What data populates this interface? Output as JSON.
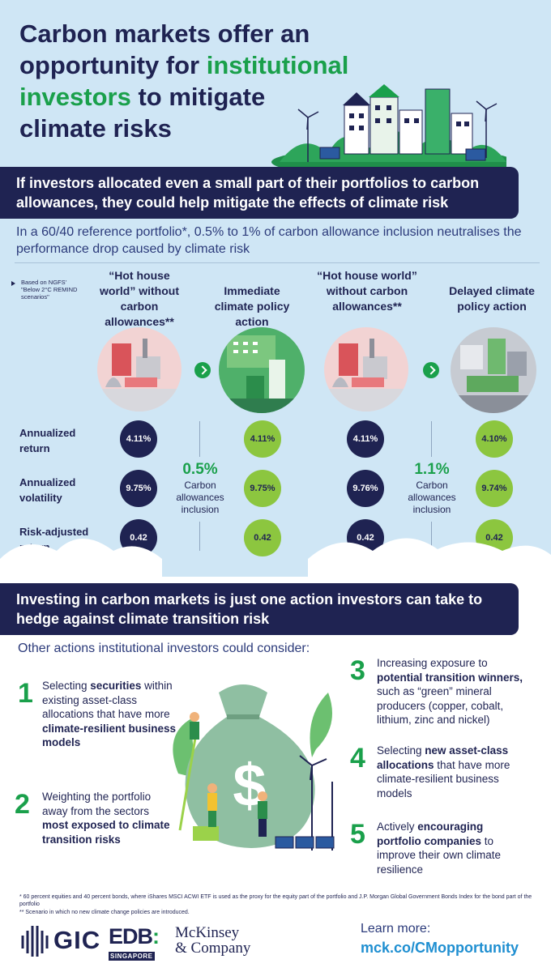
{
  "title": {
    "line1": "Carbon markets offer an",
    "line2a": "opportunity for ",
    "line2b": "institutional",
    "line3a": "investors",
    "line3b": " to mitigate",
    "line4": "climate risks"
  },
  "banner1": "If investors allocated even a small part of their portfolios to carbon allowances, they could help mitigate the effects of climate risk",
  "subhead": "In a 60/40 reference portfolio*, 0.5% to 1% of carbon allowance inclusion neutralises the performance drop caused by climate risk",
  "source_note": "Based on NGFS' \"Below 2°C REMIND scenarios\"",
  "columns": [
    {
      "heading": "“Hot house world” without carbon allowances**",
      "return": "4.11%",
      "volatility": "9.75%",
      "risk_adjusted": "0.42"
    },
    {
      "heading": "Immediate climate policy action",
      "return": "4.11%",
      "volatility": "9.75%",
      "risk_adjusted": "0.42"
    },
    {
      "heading": "“Hot house world” without carbon allowances**",
      "return": "4.11%",
      "volatility": "9.76%",
      "risk_adjusted": "0.42"
    },
    {
      "heading": "Delayed climate policy action",
      "return": "4.10%",
      "volatility": "9.74%",
      "risk_adjusted": "0.42"
    }
  ],
  "row_labels": {
    "return": "Annualized return",
    "volatility": "Annualized volatility",
    "risk_adjusted": "Risk-adjusted return"
  },
  "inclusions": [
    {
      "pct": "0.5%",
      "label": "Carbon allowances inclusion"
    },
    {
      "pct": "1.1%",
      "label": "Carbon allowances inclusion"
    }
  ],
  "banner2": "Investing in carbon markets is just one action investors can take to hedge against climate transition risk",
  "other_actions_heading": "Other actions institutional investors could consider:",
  "actions": [
    {
      "num": "1",
      "parts": [
        "Selecting ",
        "securities",
        " within existing asset-class allocations that have more ",
        "climate-resilient business models",
        ""
      ]
    },
    {
      "num": "2",
      "parts": [
        "Weighting the portfolio away from the sectors ",
        "most exposed to climate transition risks",
        "",
        "",
        ""
      ]
    },
    {
      "num": "3",
      "parts": [
        "Increasing exposure to ",
        "potential transition winners,",
        " such as “green” mineral producers (copper, cobalt, lithium, zinc and nickel)",
        "",
        ""
      ]
    },
    {
      "num": "4",
      "parts": [
        "Selecting ",
        "new asset-class allocations",
        " that have more climate-resilient business models",
        "",
        ""
      ]
    },
    {
      "num": "5",
      "parts": [
        "Actively ",
        "encouraging portfolio companies",
        " to improve their own climate resilience",
        "",
        ""
      ]
    }
  ],
  "notes": [
    "*  60 percent equities and 40 percent bonds, where iShares MSCI ACWI ETF is used as the proxy for the equity part of the portfolio and J.P. Morgan Global Government Bonds Index for the bond part of the portfolio",
    "** Scenario in which no new climate change policies are introduced."
  ],
  "logos": {
    "gic": "GIC",
    "edb": "EDB",
    "edb_sub": "SINGAPORE",
    "mck_line1": "McKinsey",
    "mck_line2": "& Company"
  },
  "learn_more": "Learn more:",
  "link": "mck.co/CMopportunity",
  "colors": {
    "navy": "#1f2352",
    "green": "#1aa04b",
    "lime": "#8cc63f",
    "sky": "#cfe6f5",
    "link": "#1f8fd1"
  }
}
